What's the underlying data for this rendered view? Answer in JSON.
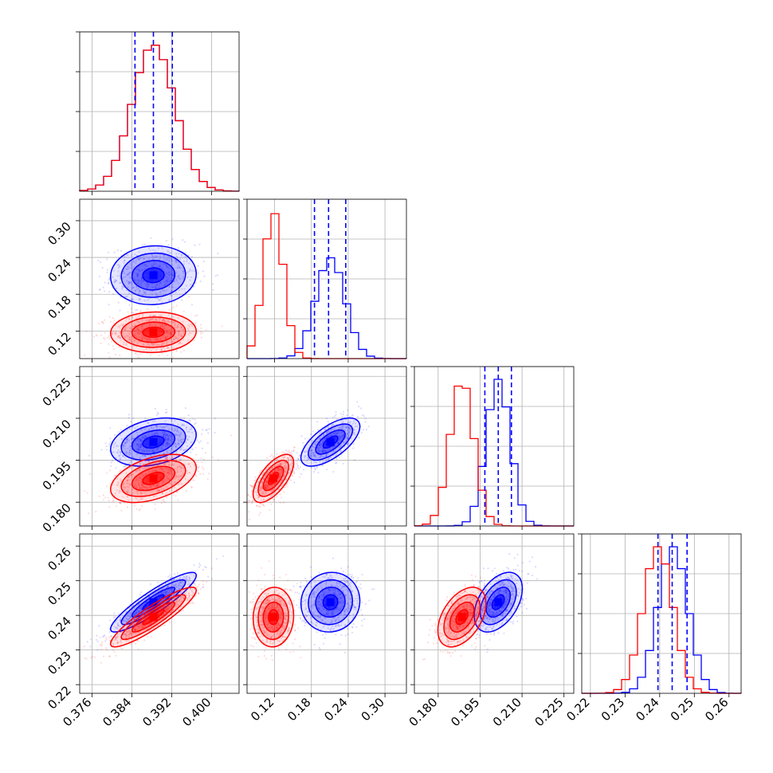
{
  "chart_data": {
    "type": "corner",
    "colors": {
      "series_a": "#0000ff",
      "series_b": "#ff0000"
    },
    "grid": true,
    "parameters": [
      {
        "range": [
          0.3735,
          0.4055
        ],
        "ticks": [
          "0.376",
          "0.384",
          "0.392",
          "0.400"
        ],
        "a": {
          "mean": 0.3883,
          "sd": 0.0043,
          "quantiles": [
            0.3846,
            0.3883,
            0.3921
          ]
        },
        "b": {
          "mean": 0.3883,
          "sd": 0.0043
        }
      },
      {
        "range": [
          0.075,
          0.335
        ],
        "ticks": [
          "0.12",
          "0.18",
          "0.24",
          "0.30"
        ],
        "a": {
          "mean": 0.211,
          "sd": 0.024,
          "quantiles": [
            0.185,
            0.208,
            0.236
          ]
        },
        "b": {
          "mean": 0.118,
          "sd": 0.0165
        }
      },
      {
        "range": [
          0.1715,
          0.2285
        ],
        "ticks": [
          "0.180",
          "0.195",
          "0.210",
          "0.225"
        ],
        "a": {
          "mean": 0.2015,
          "sd": 0.0043,
          "quantiles": [
            0.1967,
            0.2015,
            0.2062
          ]
        },
        "b": {
          "mean": 0.1885,
          "sd": 0.0043
        }
      },
      {
        "range": [
          0.2175,
          0.2635
        ],
        "ticks": [
          "0.22",
          "0.23",
          "0.24",
          "0.25",
          "0.26"
        ],
        "a": {
          "mean": 0.2438,
          "sd": 0.0043,
          "quantiles": [
            0.2395,
            0.2436,
            0.2479
          ]
        },
        "b": {
          "mean": 0.2395,
          "sd": 0.0043
        }
      }
    ],
    "correlations": {
      "0-1": {
        "a": 0.05,
        "b": 0.05
      },
      "0-2": {
        "a": 0.3,
        "b": 0.45
      },
      "0-3": {
        "a": 0.9,
        "b": 0.9
      },
      "1-2": {
        "a": 0.65,
        "b": 0.65
      },
      "1-3": {
        "a": 0.05,
        "b": 0.05
      },
      "2-3": {
        "a": 0.45,
        "b": 0.45
      }
    }
  }
}
